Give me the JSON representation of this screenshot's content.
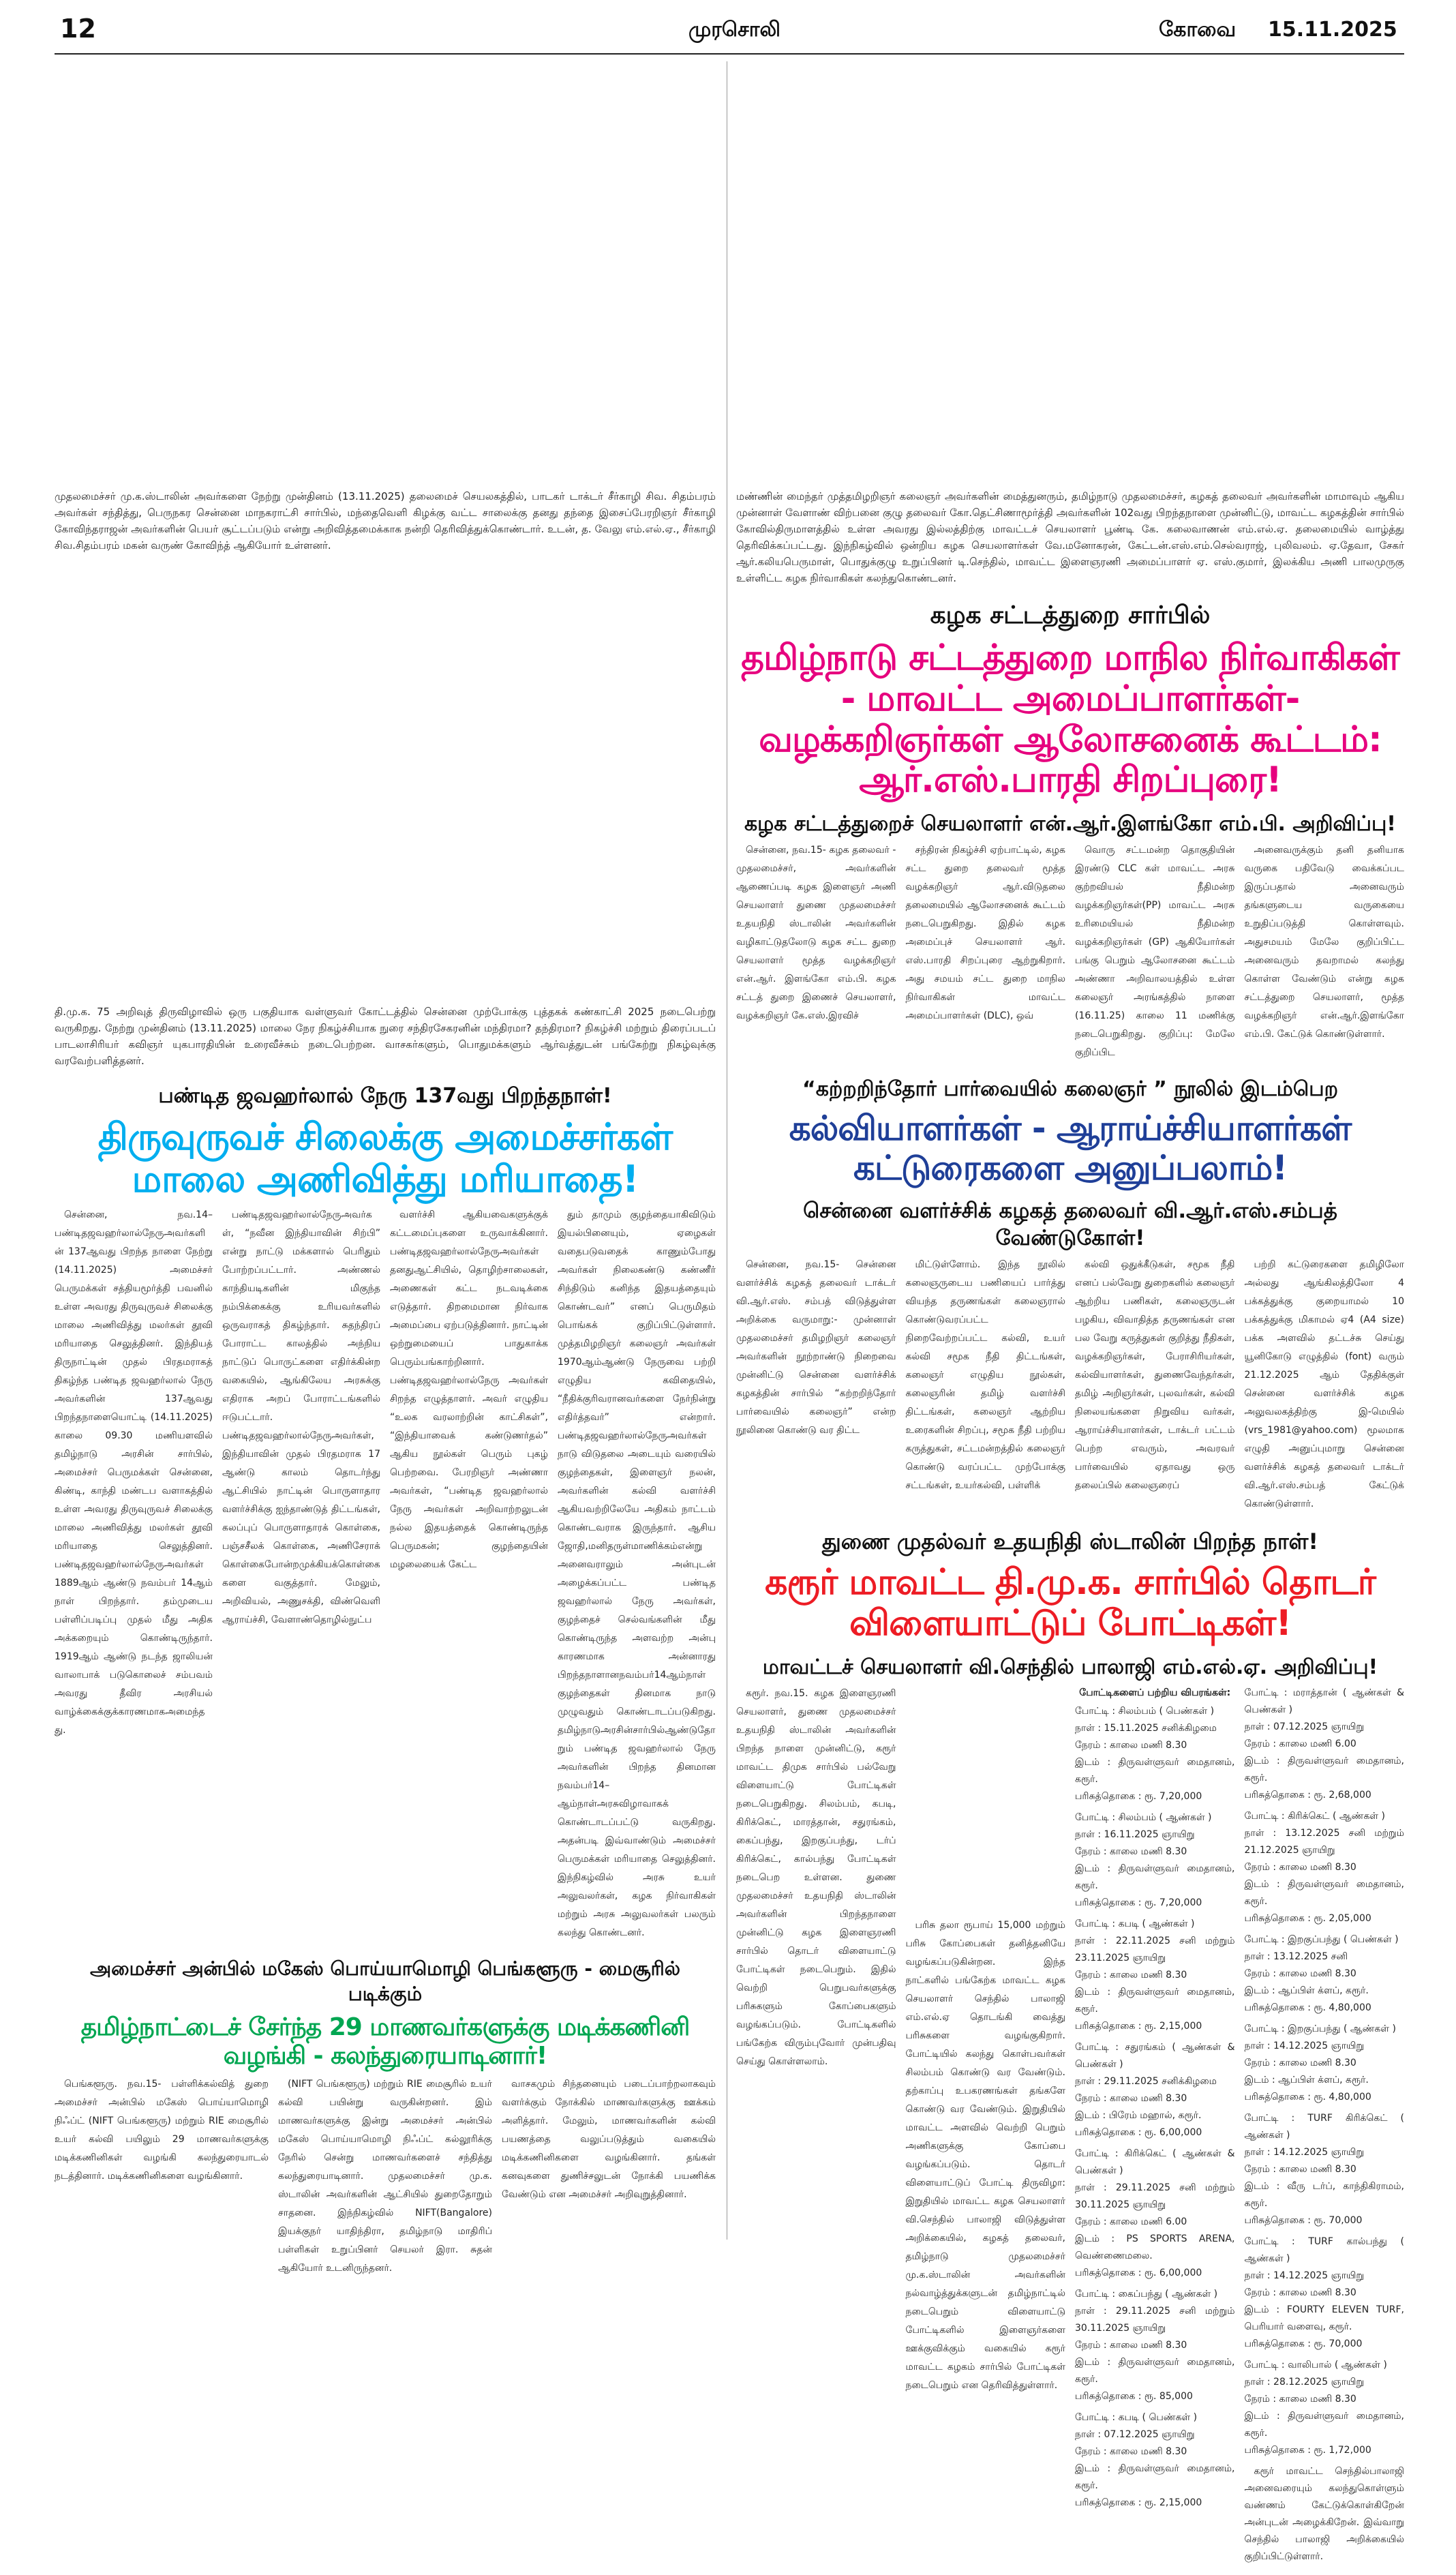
{
  "header": {
    "page_number": "12",
    "paper_name": "முரசொலி",
    "edition": "கோவை",
    "date": "15.11.2025"
  },
  "colors": {
    "magenta": "#e6007e",
    "blue": "#1f3f98",
    "cyan": "#00aeef",
    "red": "#ed1c24",
    "green": "#00a651"
  },
  "photo_captions": {
    "top_left": "முதலமைச்சர் மு.க.ஸ்டாலின் அவர்களை நேற்று முன்தினம் (13.11.2025) தலைமைச் செயலகத்தில், பாடகர் டாக்டர் சீர்காழி சிவ. சிதம்பரம் அவர்கள் சந்தித்து, பெருநகர சென்னை மாநகராட்சி சார்பில், மந்தைவெளி கிழக்கு வட்ட சாலைக்கு தனது தந்தை இசைப்பேரறிஞர் சீர்காழி கோவிந்தராஜன் அவர்களின் பெயர் சூட்டப்படும் என்று அறிவித்தமைக்காக நன்றி தெரிவித்துக்கொண்டார். உடன், த. வேலு எம்.எல்.ஏ., சீர்காழி சிவ.சிதம்பரம் மகன் வருண் கோவிந்த் ஆகியோர் உள்ளனர்.",
    "top_right": "மண்ணின் மைந்தர் முத்தமிழறிஞர் கலைஞர் அவர்களின் மைத்துனரும், தமிழ்நாடு முதலமைச்சர், கழகத் தலைவர் அவர்களின் மாமாவும் ஆகிய முன்னாள் வேளாண் விற்பனை குழு தலைவர் கோ.தெட்சிணாமூர்த்தி அவர்களின் 102வது பிறந்தநாளை முன்னிட்டு, மாவட்ட கழகத்தின் சார்பில் கோவில்திருமாளத்தில் உள்ள அவரது இல்லத்திற்கு மாவட்டச் செயலாளர் பூண்டி கே. கலைவாணன் எம்.எல்.ஏ. தலைமையில் வாழ்த்து தெரிவிக்கப்பட்டது. இந்நிகழ்வில் ஒன்றிய கழக செயலாளர்கள் வே.மனோகரன், கேட்டன்.எஸ்.எம்.செல்வராஜ், புலிவலம். ஏ.தேவா, சேகர் ஆர்.கலியபெருமாள், பொதுக்குழு உறுப்பினர் டி.செந்தில், மாவட்ட இளைஞரணி அமைப்பாளர் ஏ. எஸ்.குமார், இலக்கிய அணி பாலமுருகு உள்ளிட்ட கழக நிர்வாகிகள் கலந்துகொண்டனர்.",
    "book_fair": "தி.மு.க. 75 அறிவுத் திருவிழாவில் ஒரு பகுதியாக வள்ளுவர் கோட்டத்தில் சென்னை முற்போக்கு புத்தகக் கண்காட்சி 2025 நடைபெற்று வருகிறது. நேற்று முன்தினம் (13.11.2025) மாலை நேர நிகழ்ச்சியாக நுரை சந்திரசேகரனின் மந்திரமா? தந்திரமா? நிகழ்ச்சி மற்றும் திரைப்படப் பாடலாசிரியர் கவிஞர் யுகபாரதியின் உரைவீச்சும் நடைபெற்றன. வாசகர்களும், பொதுமக்களும் ஆர்வத்துடன் பங்கேற்று நிகழ்வுக்கு வரவேற்பளித்தனர்."
  },
  "story_legal": {
    "kicker": "கழக சட்டத்துறை சார்பில்",
    "headline": "தமிழ்நாடு சட்டத்துறை மாநில நிர்வாகிகள் - மாவட்ட அமைப்பாளர்கள்- வழக்கறிஞர்கள் ஆலோசனைக் கூட்டம்: ஆர்.எஸ்.பாரதி சிறப்புரை!",
    "subhead": "கழக சட்டத்துறைச் செயலாளர் என்.ஆர்.இளங்கோ எம்.பி. அறிவிப்பு!",
    "columns": [
      "சென்னை, நவ.15- கழக தலைவர் - முதலமைச்சர், அவர்களின் ஆணைப்படி கழக இளைஞர் அணி செயலாளர் துணை முதலமைச்சர் உதயநிதி ஸ்டாலின் அவர்களின் வழிகாட்டுதலோடு கழக சட்ட துறை செயலாளர் மூத்த வழக்கறிஞர் என்.ஆர். இளங்கோ எம்.பி. கழக சட்டத் துறை இணைச் செயலாளர், வழக்கறிஞர் கே.எஸ்.இரவிச்",
      "சந்திரன் நிகழ்ச்சி ஏற்பாட்டில், கழக சட்ட துறை தலைவர் மூத்த வழக்கறிஞர் ஆர்.விடுதலை தலைமையில் ஆலோசனைக் கூட்டம் நடைபெறுகிறது. இதில் கழக அமைப்புச் செயலாளர் ஆர். எஸ்.பாரதி சிறப்புரை ஆற்றுகிறார். அது சமயம் சட்ட துறை மாநில நிர்வாகிகள் மாவட்ட அமைப்பாளர்கள் (DLC), ஒவ்",
      "வொரு சட்டமன்ற தொகுதியின் இரண்டு CLC கள் மாவட்ட அரசு குற்றவியல் நீதிமன்ற வழக்கறிஞர்கள்(PP) மாவட்ட அரசு உரிமையியல் நீதிமன்ற வழக்கறிஞர்கள் (GP) ஆகியோர்கள் பங்கு பெறும் ஆலோசனை கூட்டம் அண்ணா அறிவாலயத்தில் உள்ள கலைஞர் அரங்கத்தில் நாளை (16.11.25) காலை 11 மணிக்கு நடைபெறுகிறது. குறிப்பு: மேலே குறிப்பிட",
      "அனைவருக்கும் தனி தனியாக வருகை பதிவேடு வைக்கப்பட இருப்பதால் அனைவரும் தங்களுடைய வருகையை உறுதிப்படுத்தி கொள்ளவும். அதுசமயம் மேலே குறிப்பிட்ட அனைவரும் தவறாமல் கலந்து கொள்ள வேண்டும் என்று கழக சட்டத்துறை செயலாளர், மூத்த வழக்கறிஞர் என்.ஆர்.இளங்கோ எம்.பி. கேட்டுக் கொண்டுள்ளார்."
    ]
  },
  "story_book": {
    "kicker": "“கற்றறிந்தோர் பார்வையில் கலைஞர் ” நூலில் இடம்பெற",
    "headline": "கல்வியாளர்கள் - ஆராய்ச்சியாளர்கள் கட்டுரைகளை அனுப்பலாம்!",
    "subhead": "சென்னை வளர்ச்சிக் கழகத் தலைவர் வி.ஆர்.எஸ்.சம்பத் வேண்டுகோள்!",
    "columns": [
      "சென்னை, நவ.15- சென்னை வளர்ச்சிக் கழகத் தலைவர் டாக்டர் வி.ஆர்.எஸ். சம்பத் விடுத்துள்ள அறிக்கை வருமாறு:- முன்னாள் முதலமைச்சர் தமிழறிஞர் கலைஞர் அவர்களின் நூற்றாண்டு நிறைவை முன்னிட்டு சென்னை வளர்ச்சிக் கழகத்தின் சார்பில் “கற்றறிந்தோர் பார்வையில் கலைஞர்” என்ற நூலினை கொண்டு வர திட்ட",
      "மிட்டுள்ளோம். இந்த நூலில் கலைஞருடைய பணியைப் பார்த்து வியந்த தருணங்கள் கலைஞரால் கொண்டுவரப்பட்ட நிறைவேற்றப்பட்ட கல்வி, உயர் கல்வி சமூக நீதி திட்டங்கள், கலைஞர் எழுதிய நூல்கள், கலைஞரின் தமிழ் வளர்ச்சி திட்டங்கள், கலைஞர் ஆற்றிய உரைகளின் சிறப்பு, சமூக நீதி பற்றிய கருத்துகள், சட்டமன்றத்தில் கலைஞர் கொண்டு வரப்பட்ட முற்போக்கு சட்டங்கள், உயர்கல்வி, பள்ளிக்",
      "கல்வி ஒதுக்கீடுகள், சமூக நீதி எனப் பல்வேறு துறைகளில் கலைஞர் ஆற்றிய பணிகள், கலைஞருடன் பழகிய, விவாதித்த தருணங்கள் என பல வேறு கருத்துகள் குறித்து நீதிகள், வழக்கறிஞர்கள், பேராசிரியர்கள், கல்வியாளர்கள், துணைவேந்தர்கள், தமிழ் அறிஞர்கள், புலவர்கள், கல்வி நிலையங்களை நிறுவிய வர்கள், ஆராய்ச்சியாளர்கள், டாக்டர் பட்டம் பெற்ற எவரும், அவரவர் பார்வையில் ஏதாவது ஒரு தலைப்பில் கலைஞரைப்",
      "பற்றி கட்டுரைகளை தமிழிலோ அல்லது ஆங்கிலத்திலோ 4 பக்கத்துக்கு குறையாமல் 10 பக்கத்துக்கு மிகாமல் ஏ4 (A4 size) பக்க அளவில் தட்டச்சு செய்து யூனிகோடு எழுத்தில் (font) வரும் 21.12.2025 ஆம் தேதிக்குள் சென்னை வளர்ச்சிக் கழக அலுவலகத்திற்கு இ-மெயில் (vrs_1981@yahoo.com) மூலமாக எழுதி அனுப்புமாறு சென்னை வளர்ச்சிக் கழகத் தலைவர் டாக்டர் வி.ஆர்.எஸ்.சம்பத் கேட்டுக் கொண்டுள்ளார்."
    ]
  },
  "story_nehru": {
    "kicker": "பண்டித ஜவஹர்லால் நேரு 137வது பிறந்தநாள்!",
    "headline": "திருவுருவச் சிலைக்கு அமைச்சர்கள் மாலை அணிவித்து மரியாதை!",
    "columns": [
      "சென்னை, நவ.14– பண்டிதஜவஹர்லால்நேருஅவர்களின் 137ஆவது பிறந்த நாளை நேற்று (14.11.2025) அமைச்சர் பெருமக்கள் சத்தியமூர்த்தி பவனில் உள்ள அவரது திருவுருவச் சிலைக்கு மாலை அணிவித்து மலர்கள் தூவி மரியாதை செலுத்தினர். இந்தியத் திருநாட்டின் முதல் பிரதமராகத் திகழ்ந்த பண்டித ஜவஹர்லால் நேரு அவர்களின் 137ஆவது பிறந்தநாளையொட்டி (14.11.2025) காலை 09.30 மணியளவில் தமிழ்நாடு அரசின் சார்பில், அமைச்சர் பெருமக்கள் சென்னை, கிண்டி, காந்தி மண்டப வளாகத்தில் உள்ள அவரது திருவுருவச் சிலைக்கு மாலை அணிவித்து மலர்கள் தூவி மரியாதை செலுத்தினர். பண்டிதஜவஹர்லால்நேருஅவர்கள் 1889ஆம் ஆண்டு நவம்பர் 14ஆம் நாள் பிறந்தார். தம்முடைய பள்ளிப்படிப்பு முதல் மீது அதிக அக்கறையும் கொண்டிருந்தார். 1919ஆம் ஆண்டு நடந்த ஜாலியன் வாலாபாக் படுகொலைச் சம்பவம் அவரது தீவிர அரசியல் வாழ்க்கைக்குக்காரணமாகஅமைந்தது.",
      "பண்டிதஜவஹர்லால்நேருஅவர்கள், “நவீன இந்தியாவின் சிற்பி” என்று நாட்டு மக்களால் பெரிதும் போற்றப்பட்டார். அண்ணல் காந்தியடிகளின் மிகுந்த நம்பிக்கைக்கு உரியவர்களில் ஒருவராகத் திகழ்ந்தார். சுதந்திரப் போராட்ட காலத்தில் அந்நிய நாட்டுப் பொருட்களை எதிர்க்கின்ற வகையில், ஆங்கிலேய அரசுக்கு எதிராக அறப் போராட்டங்களில் ஈடுபட்டார். பண்டிதஜவஹர்லால்நேருஅவர்கள், இந்தியாவின் முதல் பிரதமராக 17 ஆண்டு காலம் தொடர்ந்து ஆட்சியில் நாட்டின் பொருளாதார வளர்ச்சிக்கு ஐந்தாண்டுத் திட்டங்கள், கலப்புப் பொருளாதாரக் கொள்கை, பஞ்சசீலக் கொள்கை, அணிசேராக் கொள்கைபோன்றமுக்கியக்கொள்கைகளை வகுத்தார். மேலும், அறிவியல், அணுசக்தி, விண்வெளி ஆராய்ச்சி, வேளாண்தொழில்நுட்ப",
      "வளர்ச்சி ஆகியவைகளுக்குக் கட்டமைப்புகளை உருவாக்கினார். பண்டிதஜவஹர்லால்நேருஅவர்கள் தனதுஆட்சியில், தொழிற்சாலைகள், அணைகள் கட்ட நடவடிக்கை எடுத்தார். திறமைமான நிர்வாக அமைப்பை ஏற்படுத்தினார். நாட்டின் ஒற்றுமையைப் பாதுகாக்க பெரும்பங்காற்றினார். பண்டிதஜவஹர்லால்நேரு அவர்கள் சிறந்த எழுத்தாளர். அவர் எழுதிய “உலக வரலாற்றின் காட்சிகள்”, “இந்தியாவைக் கண்டுணர்தல்” ஆகிய நூல்கள் பெரும் புகழ் பெற்றவை. பேரறிஞர் அண்ணா அவர்கள், “பண்டித ஜவஹர்லால் நேரு அவர்கள் அறிவாற்றலுடன் நல்ல இதயத்தைக் கொண்டிருந்த பெருமகன்; குழந்தையின் மழலையைக் கேட்ட",
      "தும் தாமும் குழந்தையாகிவிடும் இயல்பினையும், ஏழைகள் வதைபடுவதைக் காணும்போது அவர்கள் நிலைகண்டு கண்ணீர் சிந்திடும் கனிந்த இதயத்தையும் கொண்டவர்” எனப் பெருமிதம் பொங்கக் குறிப்பிட்டுள்ளார். முத்தமிழறிஞர் கலைஞர் அவர்கள் 1970ஆம்ஆண்டு நேருவை பற்றி எழுதிய கவிதையில், “நீதிக்குரிவரானவர்களை நேர்நின்று எதிர்த்தவர்” என்றார். பண்டிதஜவஹர்லால்நேருஅவர்கள் நாடு விடுதலை அடையும் வரையில் குழந்தைகள், இளைஞர் நலன், அவர்களின் கல்வி வளர்ச்சி ஆகியவற்றிலேயே அதிகம் நாட்டம் கொண்டவராக இருந்தார். ஆசிய ஜோதி,மனிதருள்மாணிக்கம்என்று அனைவராலும் அன்புடன் அழைக்கப்பட்ட பண்டித ஜவஹர்லால் நேரு அவர்கள், குழந்தைச் செல்வங்களின் மீது கொண்டிருந்த அளவற்ற அன்பு காரணமாக அன்னாரது பிறந்தநாளானநவம்பர்14ஆம்நாள் குழந்தைகள் தினமாக நாடு முழுவதும் கொண்டாடப்படுகிறது. தமிழ்நாடுஅரசின்சார்பில்ஆண்டுதோறும் பண்டித ஜவஹர்லால் நேரு அவர்களின் பிறந்த தினமான நவம்பர்14–ஆம்நாள்அரசுவிழாவாகக் கொண்டாடப்பட்டு வருகிறது. அதன்படி இவ்வாண்டும் அமைச்சர் பெருமக்கள் மரியாதை செலுத்தினர். இந்நிகழ்வில் அரசு உயர் அலுவலர்கள், கழக நிர்வாகிகள் மற்றும் அரசு அலுவலர்கள் பலரும் கலந்து கொண்டனர்."
    ]
  },
  "story_sports": {
    "kicker": "துணை முதல்வர் உதயநிதி ஸ்டாலின் பிறந்த நாள்!",
    "headline": "கரூர் மாவட்ட தி.மு.க. சார்பில் தொடர் விளையாட்டுப் போட்டிகள்!",
    "subhead": "மாவட்டச் செயலாளர் வி.செந்தில் பாலாஜி எம்.எல்.ஏ. அறிவிப்பு!",
    "columns": [
      "கரூர். நவ.15. கழக இளைஞரணி செயலாளர், துணை முதலமைச்சர் உதயநிதி ஸ்டாலின் அவர்களின் பிறந்த நாளை முன்னிட்டு, கரூர் மாவட்ட திமுக சார்பில் பல்வேறு விளையாட்டு போட்டிகள் நடைபெறுகிறது. சிலம்பம், கபடி, கிரிக்கெட், மாரத்தான், சதுரங்கம், கைப்பந்து, இறகுப்பந்து, டர்ப் கிரிக்கெட், கால்பந்து போட்டிகள் நடைபெற உள்ளன. துணை முதலமைச்சர் உதயநிதி ஸ்டாலின் அவர்களின் பிறந்தநாளை முன்னிட்டு கழக இளைஞரணி சார்பில் தொடர் விளையாட்டு போட்டிகள் நடைபெறும். இதில் வெற்றி பெறுபவர்களுக்கு பரிசுகளும் கோப்பைகளும் வழங்கப்படும். போட்டிகளில் பங்கேற்க விரும்புவோர் முன்பதிவு செய்து கொள்ளலாம்.",
      "பரிசு தலா ரூபாய் 15,000 மற்றும் பரிசு கோப்பைகள் தனித்தனியே வழங்கப்படுகின்றன. இந்த நாட்களில் பங்கேற்க மாவட்ட கழக செயலாளர் செந்தில் பாலாஜி எம்.எல்.ஏ தொடங்கி வைத்து பரிசுகளை வழங்குகிறார். போட்டியில் கலந்து கொள்பவர்கள் சிலம்பம் கொண்டு வர வேண்டும். தற்காப்பு உபகரணங்கள் தங்களே கொண்டு வர வேண்டும். இறுதியில் மாவட்ட அளவில் வெற்றி பெறும் அணிகளுக்கு கோப்பை வழங்கப்படும். தொடர் விளையாட்டுப் போட்டி திருவிழா: இறுதியில் மாவட்ட கழக செயலாளர் வி.செந்தில் பாலாஜி விடுத்துள்ள அறிக்கையில், கழகத் தலைவர், தமிழ்நாடு முதலமைச்சர் மு.க.ஸ்டாலின் அவர்களின் நல்வாழ்த்துக்களுடன் தமிழ்நாட்டில் நடைபெறும் விளையாட்டு போட்டிகளில் இளைஞர்களை ஊக்குவிக்கும் வகையில் கரூர் மாவட்ட கழகம் சார்பில் போட்டிகள் நடைபெறும் என தெரிவித்துள்ளார்."
    ],
    "details_title": "போட்டிகளைப் பற்றிய விபரங்கள்:",
    "events": [
      {
        "event": "போட்டி : சிலம்பம் ( பெண்கள் )",
        "date": "நாள் : 15.11.2025 சனிக்கிழமை",
        "time": "நேரம் : காலை மணி 8.30",
        "venue": "இடம் : திருவள்ளுவர் மைதானம், கரூர்.",
        "prize": "பரிசுத்தொகை : ரூ. 7,20,000"
      },
      {
        "event": "போட்டி : சிலம்பம் ( ஆண்கள் )",
        "date": "நாள் : 16.11.2025 ஞாயிறு",
        "time": "நேரம் : காலை மணி 8.30",
        "venue": "இடம் : திருவள்ளுவர் மைதானம், கரூர்.",
        "prize": "பரிசுத்தொகை : ரூ. 7,20,000"
      },
      {
        "event": "போட்டி : கபடி ( ஆண்கள் )",
        "date": "நாள் : 22.11.2025 சனி மற்றும் 23.11.2025 ஞாயிறு",
        "time": "நேரம் : காலை மணி 8.30",
        "venue": "இடம் : திருவள்ளுவர் மைதானம், கரூர்.",
        "prize": "பரிசுத்தொகை : ரூ. 2,15,000"
      },
      {
        "event": "போட்டி : சதுரங்கம் ( ஆண்கள் & பெண்கள் )",
        "date": "நாள் : 29.11.2025 சனிக்கிழமை",
        "time": "நேரம் : காலை மணி 8.30",
        "venue": "இடம் : பிரேம் மஹால், கரூர்.",
        "prize": "பரிசுத்தொகை : ரூ. 6,00,000"
      },
      {
        "event": "போட்டி : கிரிக்கெட் ( ஆண்கள் & பெண்கள் )",
        "date": "நாள் : 29.11.2025 சனி மற்றும் 30.11.2025 ஞாயிறு",
        "time": "நேரம் : காலை மணி 6.00",
        "venue": "இடம் : PS SPORTS ARENA, வெண்ணைமலை.",
        "prize": "பரிசுத்தொகை : ரூ. 6,00,000"
      },
      {
        "event": "போட்டி : கைப்பந்து ( ஆண்கள் )",
        "date": "நாள் : 29.11.2025 சனி மற்றும் 30.11.2025 ஞாயிறு",
        "time": "நேரம் : காலை மணி 8.30",
        "venue": "இடம் : திருவள்ளுவர் மைதானம், கரூர்.",
        "prize": "பரிசுத்தொகை : ரூ. 85,000"
      },
      {
        "event": "போட்டி : கபடி ( பெண்கள் )",
        "date": "நாள் : 07.12.2025 ஞாயிறு",
        "time": "நேரம் : காலை மணி 8.30",
        "venue": "இடம் : திருவள்ளுவர் மைதானம், கரூர்.",
        "prize": "பரிசுத்தொகை : ரூ. 2,15,000"
      },
      {
        "event": "போட்டி : மராத்தான் ( ஆண்கள் & பெண்கள் )",
        "date": "நாள் : 07.12.2025 ஞாயிறு",
        "time": "நேரம் : காலை மணி 6.00",
        "venue": "இடம் : திருவள்ளுவர் மைதானம், கரூர்.",
        "prize": "பரிசுத்தொகை : ரூ. 2,68,000"
      },
      {
        "event": "போட்டி : கிரிக்கெட் ( ஆண்கள் )",
        "date": "நாள் : 13.12.2025 சனி மற்றும் 21.12.2025 ஞாயிறு",
        "time": "நேரம் : காலை மணி 8.30",
        "venue": "இடம் : திருவள்ளுவர் மைதானம், கரூர்.",
        "prize": "பரிசுத்தொகை : ரூ. 2,05,000"
      },
      {
        "event": "போட்டி : இறகுப்பந்து ( பெண்கள் )",
        "date": "நாள் : 13.12.2025 சனி",
        "time": "நேரம் : காலை மணி 8.30",
        "venue": "இடம் : ஆப்பிள் க்ளப், கரூர்.",
        "prize": "பரிசுத்தொகை : ரூ. 4,80,000"
      },
      {
        "event": "போட்டி : இறகுப்பந்து ( ஆண்கள் )",
        "date": "நாள் : 14.12.2025 ஞாயிறு",
        "time": "நேரம் : காலை மணி 8.30",
        "venue": "இடம் : ஆப்பிள் க்ளப், கரூர்.",
        "prize": "பரிசுத்தொகை : ரூ. 4,80,000"
      },
      {
        "event": "போட்டி : TURF கிரிக்கெட் ( ஆண்கள் )",
        "date": "நாள் : 14.12.2025 ஞாயிறு",
        "time": "நேரம் : காலை மணி 8.30",
        "venue": "இடம் : வீரு டர்ப், காந்திகிராமம், கரூர்.",
        "prize": "பரிசுத்தொகை : ரூ. 70,000"
      },
      {
        "event": "போட்டி : TURF கால்பந்து ( ஆண்கள் )",
        "date": "நாள் : 14.12.2025 ஞாயிறு",
        "time": "நேரம் : காலை மணி 8.30",
        "venue": "இடம் : FOURTY ELEVEN TURF, பெரியார் வளைவு, கரூர்.",
        "prize": "பரிசுத்தொகை : ரூ. 70,000"
      },
      {
        "event": "போட்டி : வாலிபால் ( ஆண்கள் )",
        "date": "நாள் : 28.12.2025 ஞாயிறு",
        "time": "நேரம் : காலை மணி 8.30",
        "venue": "இடம் : திருவள்ளுவர் மைதானம், கரூர்.",
        "prize": "பரிசுத்தொகை : ரூ. 1,72,000"
      }
    ],
    "closing": "கரூர் மாவட்ட செந்தில்பாலாஜி அனைவரையும் கலந்துகொள்ளும் வண்ணம் கேட்டுக்கொள்கிறேன் அன்புடன் அழைக்கிறேன். இவ்வாறு செந்தில் பாலாஜி அறிக்கையில் குறிப்பிட்டுள்ளார்."
  },
  "story_nift": {
    "kicker": "அமைச்சர் அன்பில் மகேஸ் பொய்யாமொழி பெங்களூரு - மைசூரில் படிக்கும்",
    "headline": "தமிழ்நாட்டைச் சேர்ந்த 29 மாணவர்களுக்கு மடிக்கணினி வழங்கி - கலந்துரையாடினார்!",
    "columns": [
      "பெங்களூரு. நவ.15- பள்ளிக்கல்வித் துறை அமைச்சர் அன்பில் மகேஸ் பொய்யாமொழி நிஃப்ட் (NIFT பெங்களூரு) மற்றும் RIE மைசூரில் உயர் கல்வி பயிலும் 29 மாணவர்களுக்கு மடிக்கணினிகள் வழங்கி கலந்துரையாடல் நடத்தினார். மடிக்கணினிகளை வழங்கினார்.",
      "(NIFT பெங்களூரு) மற்றும் RIE மைசூரில் உயர் கல்வி பயின்று வருகின்றனர். இம் மாணவர்களுக்கு இன்று அமைச்சர் அன்பில் மகேஸ் பொய்யாமொழி நிஃப்ட் கல்லூரிக்கு நேரில் சென்று மாணவர்களைச் சந்தித்து கலந்துரையாடினார். முதலமைச்சர் மு.க. ஸ்டாலின் அவர்களின் ஆட்சியில் துறைதோறும் சாதனை. இந்நிகழ்வில் NIFT(Bangalore) இயக்குநர் யாதிந்திரா, தமிழ்நாடு மாதிரிப் பள்ளிகள் உறுப்பினர் செயலர் இரா. சுதன் ஆகியோர் உடனிருந்தனர்.",
      "வாசகமும் சிந்தனையும் படைப்பாற்றலாகவும் வளர்க்கும் நோக்கில் மாணவர்களுக்கு ஊக்கம் அளித்தார். மேலும், மாணவர்களின் கல்வி பயணத்தை வலுப்படுத்தும் வகையில் மடிக்கணினிகளை வழங்கினார். தங்கள் கனவுகளை துணிச்சலுடன் நோக்கி பயணிக்க வேண்டும் என அமைச்சர் அறிவுறுத்தினார்."
    ]
  }
}
